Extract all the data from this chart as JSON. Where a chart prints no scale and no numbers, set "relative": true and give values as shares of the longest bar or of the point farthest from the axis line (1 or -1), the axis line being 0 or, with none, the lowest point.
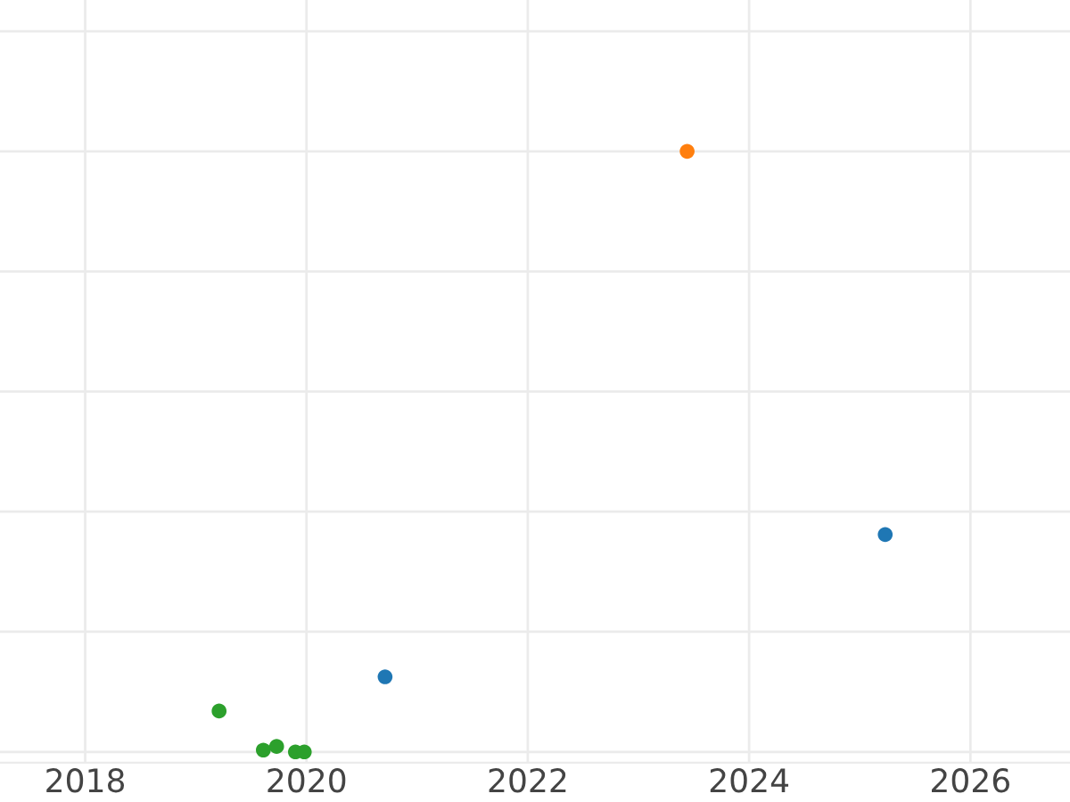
{
  "chart_data": {
    "type": "scatter",
    "relative": true,
    "grid": true,
    "legend": false,
    "marker": "circle",
    "xlim": [
      2017.23,
      2026.9
    ],
    "xticks": [
      2018,
      2020,
      2022,
      2024,
      2026
    ],
    "series": [
      {
        "color": "#ff7f0e",
        "x": [
          2023.44
        ],
        "values": [
          1
        ]
      },
      {
        "color": "#1f77b4",
        "x": [
          2025.23,
          2020.71
        ],
        "values": [
          0.362,
          0.125
        ]
      },
      {
        "color": "#2ca02c",
        "x": [
          2019.21,
          2019.61,
          2019.73,
          2019.9,
          2019.98
        ],
        "values": [
          0.068,
          0.003,
          0.009,
          0,
          0
        ]
      }
    ]
  }
}
